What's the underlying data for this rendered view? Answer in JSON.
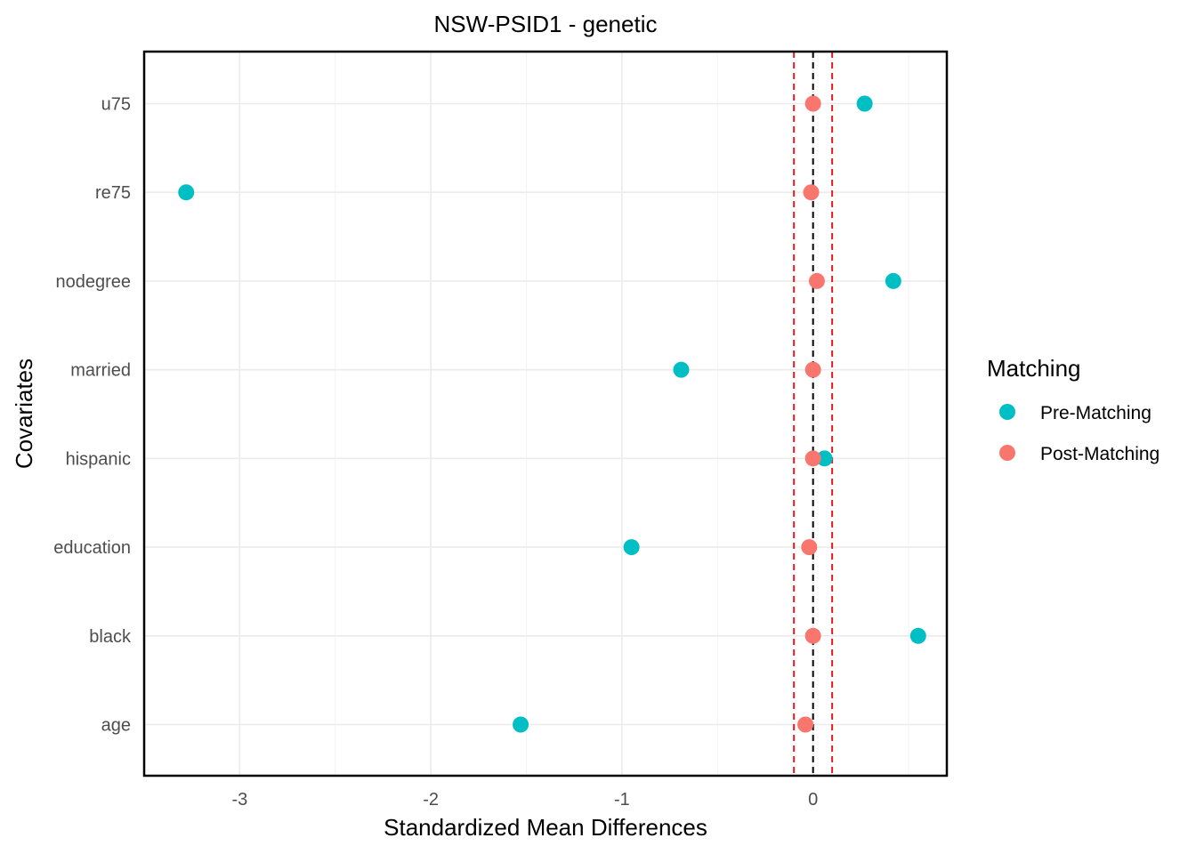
{
  "chart_data": {
    "type": "scatter",
    "title": "NSW-PSID1 - genetic",
    "xlabel": "Standardized Mean Differences",
    "ylabel": "Covariates",
    "categories": [
      "age",
      "black",
      "education",
      "hispanic",
      "married",
      "nodegree",
      "re75",
      "u75"
    ],
    "x_ticks": [
      -3,
      -2,
      -1,
      0
    ],
    "x_tick_labels": [
      "-3",
      "-2",
      "-1",
      "0"
    ],
    "xlim": [
      -3.5,
      0.7
    ],
    "reference_lines": [
      {
        "x": 0,
        "style": "dashed",
        "color": "#000000"
      },
      {
        "x": -0.1,
        "style": "dashed",
        "color": "#e41a1c"
      },
      {
        "x": 0.1,
        "style": "dashed",
        "color": "#e41a1c"
      }
    ],
    "series": [
      {
        "name": "Pre-Matching",
        "color": "#00bfc4",
        "values": [
          -1.53,
          0.55,
          -0.95,
          0.06,
          -0.69,
          0.42,
          -3.28,
          0.27
        ]
      },
      {
        "name": "Post-Matching",
        "color": "#f8766d",
        "values": [
          -0.04,
          0.0,
          -0.02,
          0.0,
          0.0,
          0.02,
          -0.01,
          0.0
        ]
      }
    ],
    "legend": {
      "title": "Matching",
      "position": "right"
    },
    "grid": true
  }
}
